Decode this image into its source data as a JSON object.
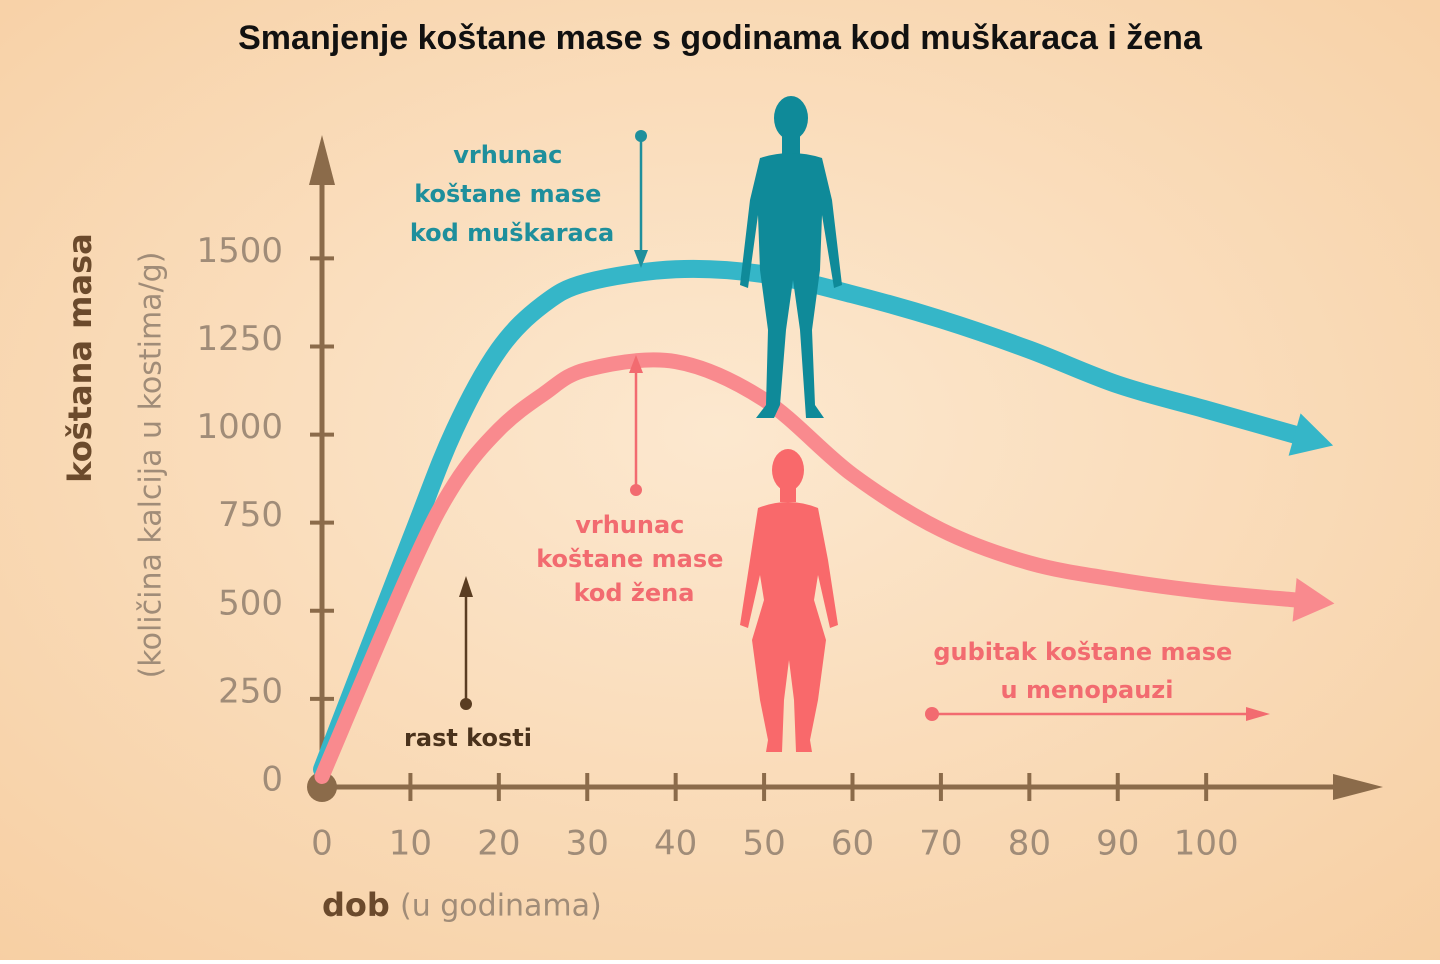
{
  "chart_data": {
    "type": "line",
    "title": "Smanjenje koštane mase s godinama kod muškaraca i žena",
    "y_label": "koštana masa",
    "y_label_note": "(količina kalcija u kostima/g)",
    "x_label": "dob",
    "x_label_note": "(u godinama)",
    "x": [
      0,
      10,
      15,
      20,
      25,
      30,
      40,
      50,
      60,
      70,
      80,
      90,
      100,
      110
    ],
    "series": [
      {
        "color": "#35b6c8",
        "values": [
          50,
          700,
          1014,
          1241,
          1369,
          1432,
          1469,
          1455,
          1398,
          1327,
          1241,
          1142,
          1071,
          1000
        ]
      },
      {
        "color": "#f98a8e",
        "values": [
          30,
          617,
          860,
          1014,
          1114,
          1185,
          1207,
          1099,
          886,
          730,
          636,
          588,
          554,
          531
        ]
      }
    ],
    "xlim": [
      0,
      120
    ],
    "xticks": [
      0,
      10,
      20,
      30,
      40,
      50,
      60,
      70,
      80,
      90,
      100
    ],
    "ylim": [
      0,
      1850
    ],
    "yticks": [
      0,
      250,
      500,
      750,
      1000,
      1250,
      1500
    ],
    "annotations": {
      "men_peak": [
        "vrhunac",
        "koštane mase",
        "kod muškaraca"
      ],
      "women_peak": [
        "vrhunac",
        "koštane mase",
        "kod žena"
      ],
      "menopause": [
        "gubitak koštane mase",
        "u menopauzi"
      ],
      "growth": "rast kosti"
    }
  }
}
